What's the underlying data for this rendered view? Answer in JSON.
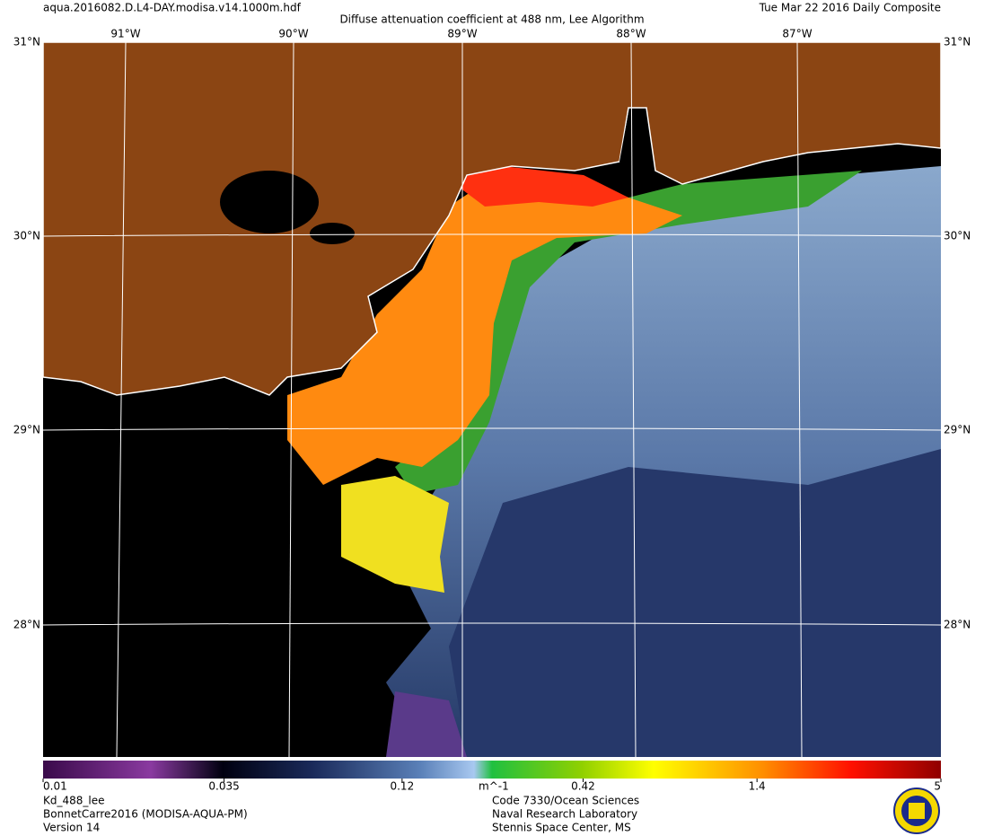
{
  "header": {
    "filename": "aqua.2016082.D.L4-DAY.modisa.v14.1000m.hdf",
    "title": "Diffuse attenuation coefficient at 488 nm, Lee Algorithm",
    "date": "Tue Mar 22 2016 Daily Composite"
  },
  "map": {
    "lat_labels_left": [
      "31°N",
      "30°N",
      "29°N",
      "28°N"
    ],
    "lat_labels_right": [
      "31°N",
      "30°N",
      "29°N",
      "28°N"
    ],
    "lon_labels": [
      "91°W",
      "90°W",
      "89°W",
      "88°W",
      "87°W"
    ]
  },
  "colorbar": {
    "range": [
      0.01,
      5
    ],
    "log": true,
    "ticks": [
      0.01,
      0.035,
      0.12,
      0.42,
      1.4,
      5
    ],
    "unit": "m^-1"
  },
  "footer": {
    "product": [
      "Kd_488_lee",
      "BonnetCarre2016 (MODISA-AQUA-PM)",
      "Version 14"
    ],
    "lab": [
      "Code 7330/Ocean Sciences",
      "Naval Research Laboratory",
      "Stennis Space Center, MS"
    ]
  }
}
